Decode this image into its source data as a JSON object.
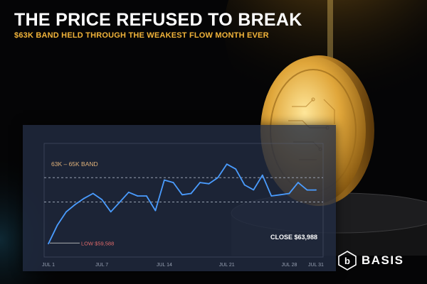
{
  "header": {
    "title": "THE PRICE REFUSED TO BREAK",
    "subtitle": "$63K BAND HELD THROUGH THE WEAKEST FLOW MONTH EVER"
  },
  "brand": {
    "name": "BASIS",
    "logo_icon": "basis-logo-icon"
  },
  "colors": {
    "line": "#4a9cff",
    "accent": "#f2b43a",
    "band_label": "#e0b27a",
    "band_lines": "#a8b1c2"
  },
  "chart_data": {
    "type": "line",
    "title": "THE PRICE REFUSED TO BREAK",
    "subtitle": "$63K BAND HELD THROUGH THE WEAKEST FLOW MONTH EVER",
    "xlabel": "",
    "ylabel": "",
    "xlim": [
      1,
      31
    ],
    "ylim": [
      58500,
      67800
    ],
    "grid": false,
    "x_ticks": [
      {
        "day": 1,
        "label": "JUL 1"
      },
      {
        "day": 7,
        "label": "JUL 7"
      },
      {
        "day": 14,
        "label": "JUL 14"
      },
      {
        "day": 21,
        "label": "JUL 21"
      },
      {
        "day": 28,
        "label": "JUL 28"
      },
      {
        "day": 31,
        "label": "JUL 31"
      }
    ],
    "series": [
      {
        "x": [
          1,
          2,
          3,
          4,
          5,
          6,
          7,
          8,
          9,
          10,
          11,
          12,
          13,
          14,
          15,
          16,
          17,
          18,
          19,
          20,
          21,
          22,
          23,
          24,
          25,
          26,
          27,
          28,
          29,
          30,
          31
        ],
        "y": [
          59588,
          61100,
          62200,
          62800,
          63300,
          63700,
          63200,
          62200,
          63000,
          63800,
          63500,
          63500,
          62300,
          64800,
          64600,
          63600,
          63700,
          64600,
          64500,
          65000,
          66100,
          65700,
          64400,
          64000,
          65200,
          63500,
          63600,
          63700,
          64600,
          63988,
          63988
        ]
      }
    ],
    "band": {
      "label": "63K – 65K BAND",
      "low": 63000,
      "high": 65000
    },
    "annotations": {
      "low_label": "LOW $59,588",
      "close_label": "CLOSE $63,988"
    }
  }
}
